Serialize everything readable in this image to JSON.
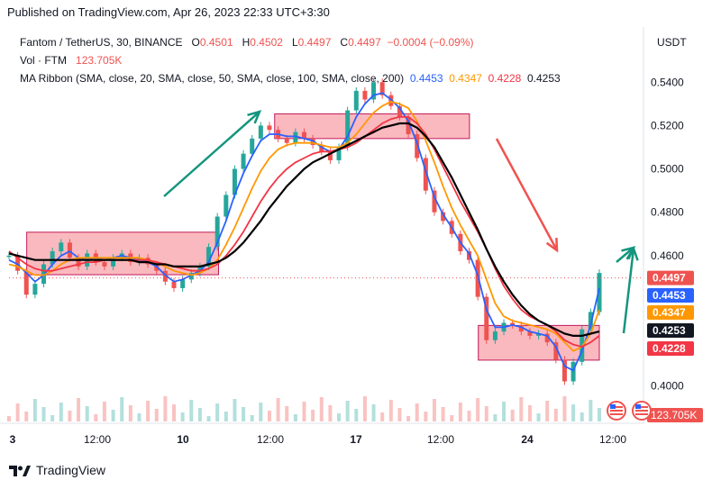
{
  "publisher_line": "Published on TradingView.com, Apr 26, 2023 22:33 UTC+3:30",
  "header": {
    "symbol": "Fantom / TetherUS, 30, BINANCE",
    "o_label": "O",
    "o": "0.4501",
    "h_label": "H",
    "h": "0.4502",
    "l_label": "L",
    "l": "0.4497",
    "c_label": "C",
    "c": "0.4497",
    "change": "−0.0004 (−0.09%)",
    "vol_label": "Vol · FTM",
    "vol": "123.705K",
    "ma_label": "MA Ribbon (SMA, close, 20, SMA, close, 50, SMA, close, 100, SMA, close, 200)",
    "ma_values": [
      "0.4453",
      "0.4347",
      "0.4228",
      "0.4253"
    ]
  },
  "currency": "USDT",
  "branding": "TradingView",
  "chart_data": {
    "type": "line",
    "ylim": [
      0.386,
      0.548
    ],
    "y_ticks": [
      "0.5400",
      "0.5200",
      "0.5000",
      "0.4800",
      "0.4600",
      "0.4000"
    ],
    "y_tick_values": [
      0.54,
      0.52,
      0.5,
      0.48,
      0.46,
      0.4
    ],
    "x_ticks": [
      "3",
      "12:00",
      "10",
      "12:00",
      "17",
      "12:00",
      "24",
      "12:00"
    ],
    "x_tick_positions": [
      0.0,
      0.22,
      0.5,
      0.72,
      1.0,
      1.22,
      1.5,
      1.72
    ],
    "price_labels": [
      {
        "text": "0.4497",
        "value": 0.4497,
        "color": "#ef5350"
      },
      {
        "text": "0.4453",
        "value": 0.4453,
        "color": "#2962ff"
      },
      {
        "text": "0.4347",
        "value": 0.4347,
        "color": "#ff9800"
      },
      {
        "text": "0.4253",
        "value": 0.4253,
        "color": "#131722"
      },
      {
        "text": "0.4228",
        "value": 0.4228,
        "color": "#f23645"
      }
    ],
    "volume_label": "123.705K",
    "price": [
      0.46,
      0.453,
      0.442,
      0.447,
      0.456,
      0.462,
      0.466,
      0.459,
      0.455,
      0.461,
      0.457,
      0.455,
      0.459,
      0.461,
      0.457,
      0.459,
      0.456,
      0.453,
      0.448,
      0.445,
      0.449,
      0.452,
      0.455,
      0.464,
      0.478,
      0.488,
      0.5,
      0.507,
      0.514,
      0.52,
      0.518,
      0.514,
      0.512,
      0.517,
      0.514,
      0.511,
      0.508,
      0.504,
      0.51,
      0.527,
      0.536,
      0.532,
      0.54,
      0.534,
      0.529,
      0.524,
      0.516,
      0.505,
      0.49,
      0.48,
      0.476,
      0.47,
      0.462,
      0.458,
      0.441,
      0.421,
      0.425,
      0.429,
      0.428,
      0.425,
      0.423,
      0.424,
      0.42,
      0.412,
      0.402,
      0.411,
      0.426,
      0.434,
      0.452
    ],
    "series": [
      {
        "name": "MA 20",
        "color": "#2962ff",
        "values": [
          0.458,
          0.456,
          0.452,
          0.448,
          0.451,
          0.456,
          0.46,
          0.462,
          0.459,
          0.458,
          0.459,
          0.458,
          0.459,
          0.46,
          0.459,
          0.458,
          0.457,
          0.455,
          0.451,
          0.448,
          0.449,
          0.451,
          0.453,
          0.457,
          0.466,
          0.476,
          0.488,
          0.498,
          0.506,
          0.513,
          0.516,
          0.516,
          0.515,
          0.515,
          0.514,
          0.513,
          0.51,
          0.508,
          0.509,
          0.515,
          0.524,
          0.53,
          0.534,
          0.535,
          0.532,
          0.528,
          0.522,
          0.512,
          0.499,
          0.487,
          0.479,
          0.473,
          0.466,
          0.461,
          0.451,
          0.435,
          0.427,
          0.427,
          0.428,
          0.427,
          0.425,
          0.424,
          0.423,
          0.418,
          0.409,
          0.407,
          0.416,
          0.428,
          0.445
        ]
      },
      {
        "name": "MA 50",
        "color": "#ff9800",
        "values": [
          0.456,
          0.455,
          0.453,
          0.451,
          0.451,
          0.453,
          0.456,
          0.458,
          0.459,
          0.459,
          0.459,
          0.459,
          0.459,
          0.459,
          0.459,
          0.459,
          0.458,
          0.457,
          0.455,
          0.453,
          0.452,
          0.451,
          0.452,
          0.454,
          0.458,
          0.465,
          0.473,
          0.482,
          0.491,
          0.499,
          0.505,
          0.509,
          0.511,
          0.512,
          0.512,
          0.512,
          0.511,
          0.51,
          0.51,
          0.512,
          0.516,
          0.521,
          0.526,
          0.529,
          0.531,
          0.53,
          0.528,
          0.522,
          0.513,
          0.503,
          0.492,
          0.482,
          0.474,
          0.467,
          0.46,
          0.449,
          0.438,
          0.432,
          0.43,
          0.429,
          0.428,
          0.427,
          0.426,
          0.424,
          0.42,
          0.416,
          0.418,
          0.424,
          0.435
        ]
      },
      {
        "name": "MA 100",
        "color": "#f23645",
        "values": [
          0.462,
          0.459,
          0.456,
          0.454,
          0.453,
          0.453,
          0.454,
          0.455,
          0.456,
          0.457,
          0.457,
          0.458,
          0.458,
          0.458,
          0.458,
          0.458,
          0.458,
          0.457,
          0.456,
          0.455,
          0.454,
          0.453,
          0.453,
          0.454,
          0.456,
          0.46,
          0.465,
          0.471,
          0.478,
          0.485,
          0.491,
          0.496,
          0.5,
          0.503,
          0.505,
          0.507,
          0.508,
          0.508,
          0.509,
          0.51,
          0.512,
          0.515,
          0.518,
          0.521,
          0.523,
          0.524,
          0.524,
          0.521,
          0.516,
          0.509,
          0.501,
          0.493,
          0.485,
          0.478,
          0.471,
          0.463,
          0.454,
          0.446,
          0.44,
          0.435,
          0.432,
          0.43,
          0.428,
          0.425,
          0.421,
          0.419,
          0.418,
          0.42,
          0.423
        ]
      },
      {
        "name": "MA 200",
        "color": "#000000",
        "values": [
          0.461,
          0.46,
          0.459,
          0.458,
          0.458,
          0.458,
          0.458,
          0.458,
          0.458,
          0.458,
          0.458,
          0.458,
          0.458,
          0.458,
          0.458,
          0.457,
          0.457,
          0.456,
          0.456,
          0.455,
          0.455,
          0.455,
          0.455,
          0.456,
          0.457,
          0.459,
          0.462,
          0.466,
          0.471,
          0.476,
          0.482,
          0.487,
          0.492,
          0.496,
          0.5,
          0.503,
          0.505,
          0.507,
          0.509,
          0.511,
          0.513,
          0.515,
          0.517,
          0.519,
          0.52,
          0.521,
          0.521,
          0.519,
          0.515,
          0.51,
          0.503,
          0.496,
          0.488,
          0.48,
          0.472,
          0.463,
          0.455,
          0.448,
          0.442,
          0.437,
          0.433,
          0.43,
          0.428,
          0.426,
          0.424,
          0.423,
          0.423,
          0.424,
          0.425
        ]
      }
    ],
    "boxes": [
      {
        "x0": 0.03,
        "x1": 0.355,
        "y0": 0.4512,
        "y1": 0.4708
      },
      {
        "x0": 0.45,
        "x1": 0.78,
        "y0": 0.514,
        "y1": 0.5254
      },
      {
        "x0": 0.795,
        "x1": 1.0,
        "y0": 0.4118,
        "y1": 0.4278
      }
    ],
    "grid": false
  }
}
